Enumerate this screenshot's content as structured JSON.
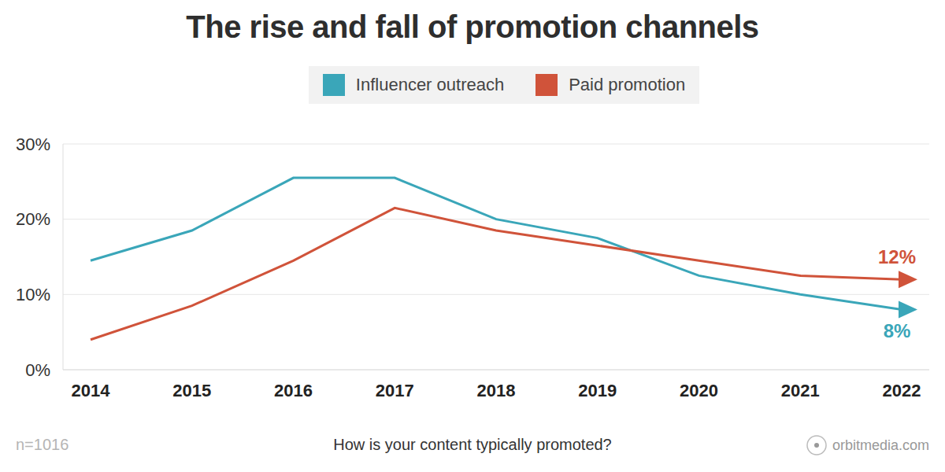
{
  "chart_data": {
    "type": "line",
    "title": "The rise and fall of promotion channels",
    "x_label": "How is your content typically promoted?",
    "note": "n=1016",
    "source": "orbitmedia.com",
    "categories": [
      "2014",
      "2015",
      "2016",
      "2017",
      "2018",
      "2019",
      "2020",
      "2021",
      "2022"
    ],
    "series": [
      {
        "name": "Influencer outreach",
        "color": "#3aa6b9",
        "marker": "arrow",
        "values": [
          14.5,
          18.5,
          25.5,
          25.5,
          20,
          17.5,
          12.5,
          10,
          8
        ],
        "value_labels": [
          null,
          null,
          null,
          null,
          null,
          null,
          null,
          null,
          "8%"
        ]
      },
      {
        "name": "Paid promotion",
        "color": "#d0533a",
        "marker": "arrow",
        "values": [
          4,
          8.5,
          14.5,
          21.5,
          18.5,
          16.5,
          14.5,
          12.5,
          12
        ],
        "value_labels": [
          null,
          null,
          null,
          null,
          null,
          null,
          null,
          null,
          "12%"
        ]
      }
    ],
    "ylim": [
      0,
      30
    ],
    "yticks": [
      {
        "value": 0,
        "label": "0%"
      },
      {
        "value": 10,
        "label": "10%"
      },
      {
        "value": 20,
        "label": "20%"
      },
      {
        "value": 30,
        "label": "30%"
      }
    ],
    "grid": true,
    "legend": "top"
  }
}
